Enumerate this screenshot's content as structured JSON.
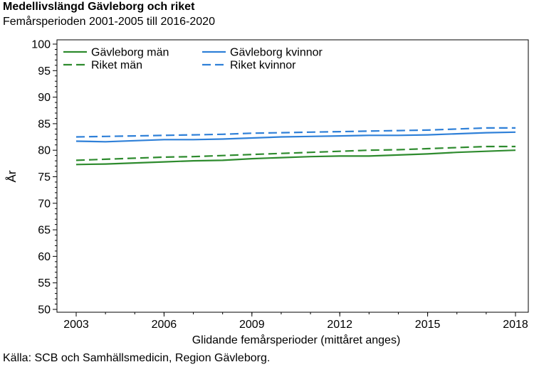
{
  "header": {
    "title": "Medellivslängd Gävleborg och riket",
    "subtitle": "Femårsperioden 2001-2005 till 2016-2020"
  },
  "footer": {
    "source": "Källa: SCB och Samhällsmedicin, Region Gävleborg."
  },
  "colors": {
    "green": "#2e8b2e",
    "blue": "#2f80d8"
  },
  "chart_data": {
    "type": "line",
    "title": "Medellivslängd Gävleborg och riket",
    "subtitle": "Femårsperioden 2001-2005 till 2016-2020",
    "xlabel": "Glidande femårsperioder (mittåret anges)",
    "ylabel": "År",
    "x": [
      2003,
      2004,
      2005,
      2006,
      2007,
      2008,
      2009,
      2010,
      2011,
      2012,
      2013,
      2014,
      2015,
      2016,
      2017,
      2018
    ],
    "xticks": [
      "2003",
      "2006",
      "2009",
      "2012",
      "2015",
      "2018"
    ],
    "xlim": [
      2003,
      2018
    ],
    "ylim": [
      50,
      100
    ],
    "yticks": [
      "50",
      "55",
      "60",
      "65",
      "70",
      "75",
      "80",
      "85",
      "90",
      "95",
      "100"
    ],
    "legend_position": "top",
    "series": [
      {
        "name": "Gävleborg män",
        "color": "#2e8b2e",
        "dash": "solid",
        "values": [
          77.3,
          77.4,
          77.6,
          77.8,
          78.0,
          78.1,
          78.4,
          78.6,
          78.8,
          78.9,
          78.9,
          79.1,
          79.3,
          79.6,
          79.8,
          80.0
        ]
      },
      {
        "name": "Gävleborg kvinnor",
        "color": "#2f80d8",
        "dash": "solid",
        "values": [
          81.7,
          81.6,
          81.8,
          82.0,
          82.0,
          82.1,
          82.3,
          82.5,
          82.6,
          82.7,
          82.8,
          82.8,
          82.9,
          83.1,
          83.3,
          83.4
        ]
      },
      {
        "name": "Riket män",
        "color": "#2e8b2e",
        "dash": "dashed",
        "values": [
          78.1,
          78.3,
          78.5,
          78.7,
          78.8,
          79.0,
          79.2,
          79.4,
          79.6,
          79.8,
          80.0,
          80.1,
          80.3,
          80.5,
          80.7,
          80.7
        ]
      },
      {
        "name": "Riket kvinnor",
        "color": "#2f80d8",
        "dash": "dashed",
        "values": [
          82.5,
          82.6,
          82.7,
          82.8,
          82.9,
          83.0,
          83.2,
          83.3,
          83.4,
          83.5,
          83.6,
          83.7,
          83.8,
          84.0,
          84.2,
          84.2
        ]
      }
    ]
  }
}
